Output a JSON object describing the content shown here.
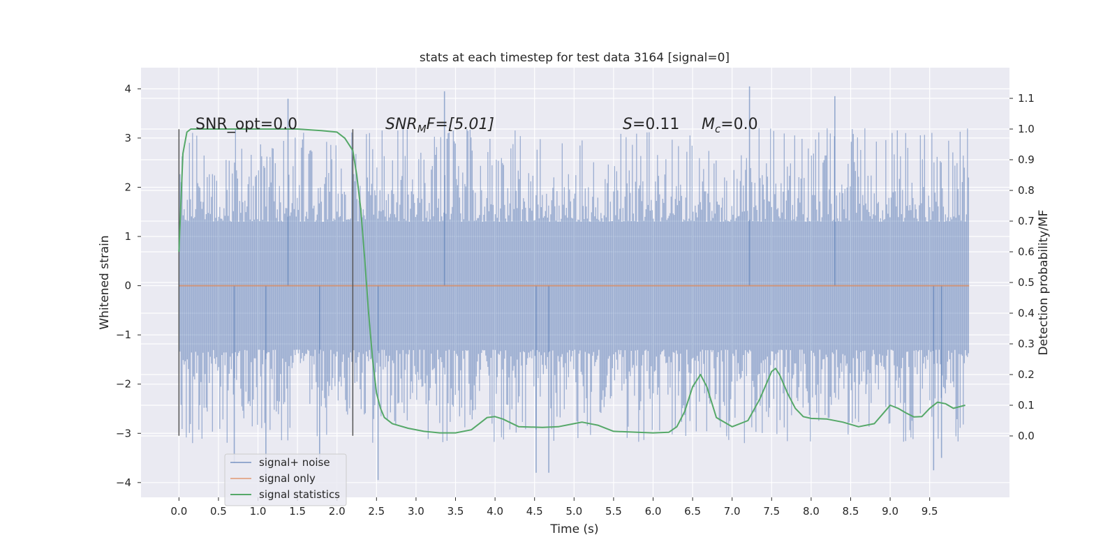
{
  "chart_data": {
    "type": "line",
    "title": "stats at each timestep for test data 3164 [signal=0]",
    "xlabel": "Time (s)",
    "ylabel_left": "Whitened strain",
    "ylabel_right": "Detection probability/MF",
    "xlim": [
      -0.48,
      10.51
    ],
    "ylim_left": [
      -4.3,
      4.43
    ],
    "ylim_right": [
      -0.2,
      1.2
    ],
    "xticks": [
      "0.0",
      "0.5",
      "1.0",
      "1.5",
      "2.0",
      "2.5",
      "3.0",
      "3.5",
      "4.0",
      "4.5",
      "5.0",
      "5.5",
      "6.0",
      "6.5",
      "7.0",
      "7.5",
      "8.0",
      "8.5",
      "9.0",
      "9.5"
    ],
    "xtick_values": [
      0.0,
      0.5,
      1.0,
      1.5,
      2.0,
      2.5,
      3.0,
      3.5,
      4.0,
      4.5,
      5.0,
      5.5,
      6.0,
      6.5,
      7.0,
      7.5,
      8.0,
      8.5,
      9.0,
      9.5
    ],
    "yticks_left": [
      "4",
      "3",
      "2",
      "1",
      "0",
      "−1",
      "−2",
      "−3",
      "−4"
    ],
    "ytick_values_left": [
      4,
      3,
      2,
      1,
      0,
      -1,
      -2,
      -3,
      -4
    ],
    "yticks_right": [
      "1.1",
      "1.0",
      "0.9",
      "0.8",
      "0.7",
      "0.6",
      "0.5",
      "0.4",
      "0.3",
      "0.2",
      "0.1",
      "0.0"
    ],
    "ytick_values_right": [
      1.1,
      1.0,
      0.9,
      0.8,
      0.7,
      0.6,
      0.5,
      0.4,
      0.3,
      0.2,
      0.1,
      0.0
    ],
    "annotations": {
      "snr_opt": "SNR_opt=0.0",
      "snr_mf_label": "SNR",
      "snr_mf_sub": "M",
      "snr_mf_rest": "F=[5.01]",
      "s_label": "S",
      "s_rest": "=0.11",
      "mc_label": "M",
      "mc_sub": "c",
      "mc_rest": "=0.0"
    },
    "vertical_lines_x": [
      0.0,
      2.2
    ],
    "vertical_lines_range_left": [
      -3.05,
      3.18
    ],
    "series": [
      {
        "name": "signal+ noise",
        "axis": "left",
        "color": "#4c72b0",
        "x_range": [
          0.0,
          10.0
        ],
        "description": "noise band",
        "band_inner": [
          -1.3,
          1.3
        ],
        "band_outer": [
          -2.5,
          2.5
        ],
        "spikes": [
          {
            "x": 0.7,
            "y": -3.6
          },
          {
            "x": 1.1,
            "y": -3.8
          },
          {
            "x": 1.38,
            "y": 3.8
          },
          {
            "x": 1.78,
            "y": -3.6
          },
          {
            "x": 2.52,
            "y": -3.95
          },
          {
            "x": 3.36,
            "y": 3.95
          },
          {
            "x": 4.52,
            "y": -3.8
          },
          {
            "x": 4.68,
            "y": -3.8
          },
          {
            "x": 7.22,
            "y": 4.05
          },
          {
            "x": 8.3,
            "y": 3.85
          },
          {
            "x": 9.55,
            "y": -3.75
          },
          {
            "x": 9.65,
            "y": -3.5
          }
        ]
      },
      {
        "name": "signal only",
        "axis": "left",
        "color": "#dd8452",
        "x": [
          0.0,
          10.0
        ],
        "y": [
          0.0,
          0.0
        ]
      },
      {
        "name": "signal statistics",
        "axis": "right",
        "color": "#55a868",
        "x": [
          0.0,
          0.05,
          0.1,
          0.15,
          0.3,
          0.5,
          1.0,
          1.5,
          1.8,
          2.0,
          2.1,
          2.2,
          2.25,
          2.3,
          2.35,
          2.4,
          2.45,
          2.5,
          2.55,
          2.6,
          2.7,
          2.9,
          3.1,
          3.3,
          3.5,
          3.7,
          3.8,
          3.9,
          4.0,
          4.1,
          4.3,
          4.6,
          4.8,
          5.0,
          5.1,
          5.3,
          5.5,
          5.8,
          6.0,
          6.2,
          6.3,
          6.4,
          6.5,
          6.6,
          6.68,
          6.8,
          7.0,
          7.2,
          7.35,
          7.5,
          7.55,
          7.6,
          7.7,
          7.8,
          7.9,
          8.0,
          8.2,
          8.4,
          8.6,
          8.8,
          8.9,
          9.0,
          9.1,
          9.2,
          9.3,
          9.4,
          9.5,
          9.6,
          9.7,
          9.8,
          9.95
        ],
        "y": [
          0.6,
          0.92,
          0.99,
          1.0,
          1.0,
          1.0,
          1.0,
          1.0,
          0.995,
          0.99,
          0.97,
          0.93,
          0.85,
          0.74,
          0.58,
          0.4,
          0.25,
          0.14,
          0.09,
          0.06,
          0.04,
          0.025,
          0.015,
          0.01,
          0.01,
          0.02,
          0.04,
          0.06,
          0.063,
          0.055,
          0.03,
          0.028,
          0.03,
          0.04,
          0.045,
          0.035,
          0.015,
          0.012,
          0.01,
          0.012,
          0.03,
          0.08,
          0.16,
          0.2,
          0.16,
          0.06,
          0.03,
          0.05,
          0.12,
          0.21,
          0.22,
          0.2,
          0.14,
          0.09,
          0.063,
          0.057,
          0.055,
          0.045,
          0.03,
          0.04,
          0.07,
          0.1,
          0.09,
          0.075,
          0.062,
          0.063,
          0.09,
          0.11,
          0.105,
          0.09,
          0.1
        ]
      }
    ],
    "legend_placement": "lower-left",
    "grid": true
  },
  "styles": {
    "background": "#eaeaf2",
    "grid_color": "#ffffff",
    "text_color": "#262626",
    "vline_color": "#555555"
  }
}
